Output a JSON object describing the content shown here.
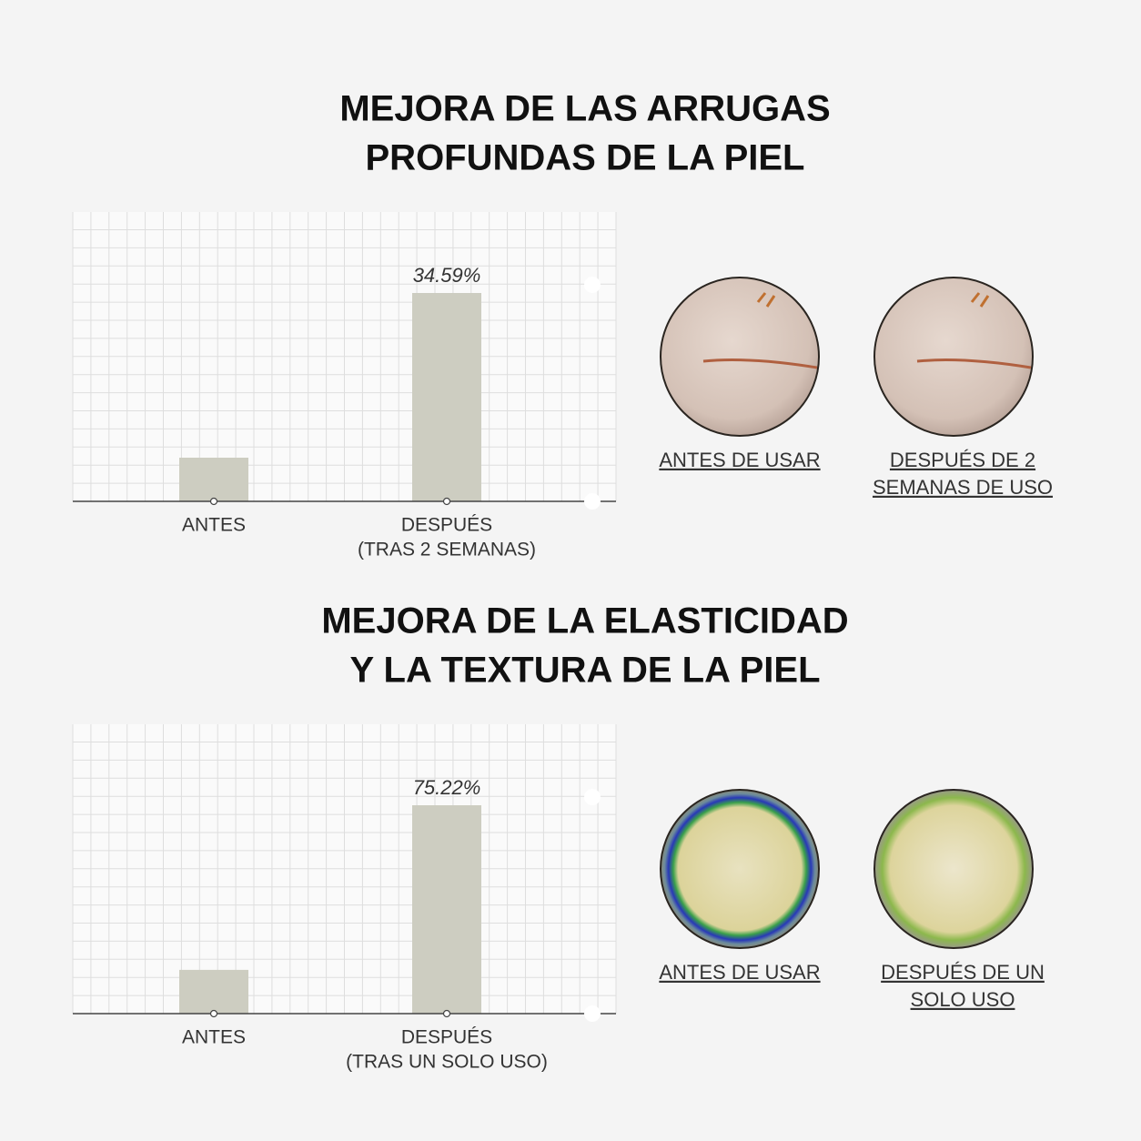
{
  "chart_data": [
    {
      "type": "bar",
      "title": [
        "MEJORA DE LAS ARRUGAS",
        "PROFUNDAS DE LA PIEL"
      ],
      "categories": [
        [
          "ANTES"
        ],
        [
          "DESPUÉS",
          "(TRAS 2 SEMANAS)"
        ]
      ],
      "values": [
        7.25,
        34.59
      ],
      "value_labels": [
        null,
        "34.59%"
      ],
      "color": "#cdcdc1",
      "photos": [
        {
          "caption": [
            "ANTES DE USAR"
          ],
          "style": "skin"
        },
        {
          "caption": [
            "DESPUÉS DE 2",
            "SEMANAS DE USO"
          ],
          "style": "skin"
        }
      ]
    },
    {
      "type": "bar",
      "title": [
        "MEJORA DE LA ELASTICIDAD",
        "Y LA TEXTURA DE LA PIEL"
      ],
      "categories": [
        [
          "ANTES"
        ],
        [
          "DESPUÉS",
          "(TRAS UN SOLO USO)"
        ]
      ],
      "values": [
        15.8,
        75.22
      ],
      "value_labels": [
        null,
        "75.22%"
      ],
      "color": "#cdcdc1",
      "photos": [
        {
          "caption": [
            "ANTES DE USAR"
          ],
          "style": "ring"
        },
        {
          "caption": [
            "DESPUÉS DE UN",
            "SOLO USO"
          ],
          "style": "dots"
        }
      ]
    }
  ]
}
